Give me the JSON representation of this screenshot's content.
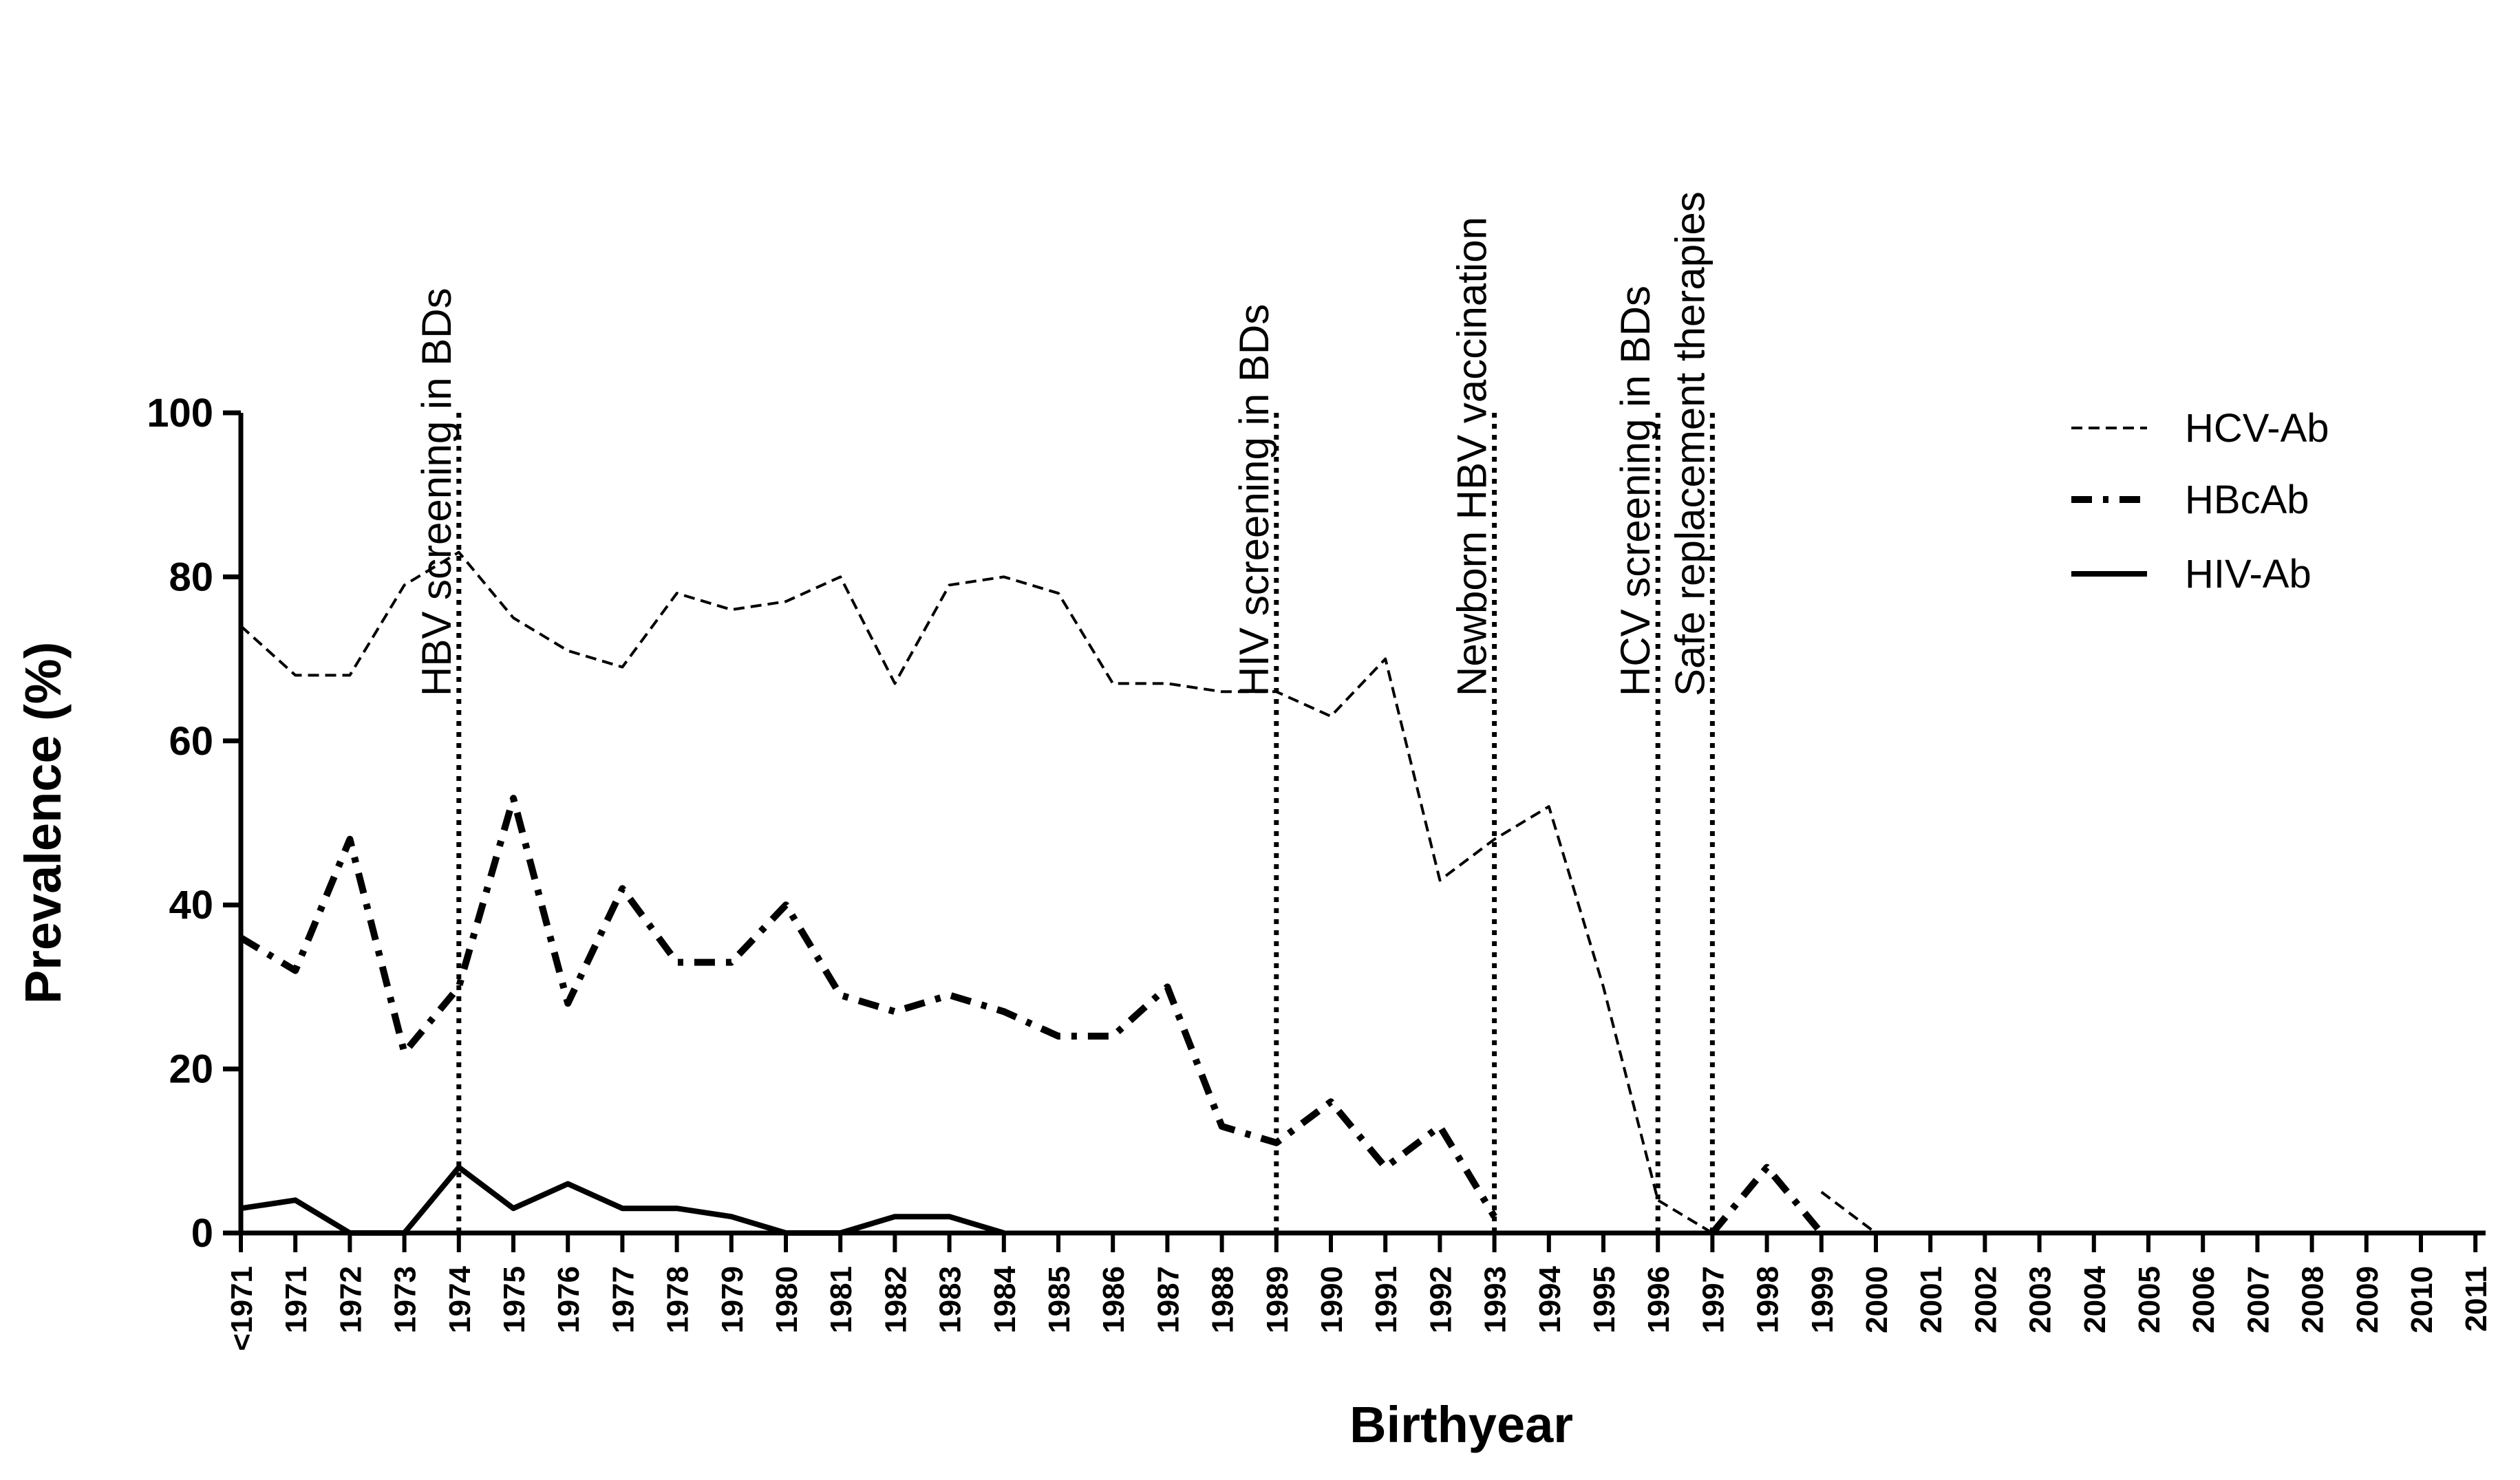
{
  "chart_data": {
    "type": "line",
    "title": "",
    "xlabel": "Birthyear",
    "ylabel": "Prevalence (%)",
    "ylim": [
      0,
      100
    ],
    "yticks": [
      "0",
      "20",
      "40",
      "60",
      "80",
      "100"
    ],
    "grid": false,
    "legend_position": "top-right",
    "categories": [
      "<1971",
      "1971",
      "1972",
      "1973",
      "1974",
      "1975",
      "1976",
      "1977",
      "1978",
      "1979",
      "1980",
      "1981",
      "1982",
      "1983",
      "1984",
      "1985",
      "1986",
      "1987",
      "1988",
      "1989",
      "1990",
      "1991",
      "1992",
      "1993",
      "1994",
      "1995",
      "1996",
      "1997",
      "1998",
      "1999",
      "2000",
      "2001",
      "2002",
      "2003",
      "2004",
      "2005",
      "2006",
      "2007",
      "2008",
      "2009",
      "2010",
      "2011"
    ],
    "series": [
      {
        "name": "HCV-Ab",
        "style": "dashed",
        "values": [
          74,
          68,
          68,
          79,
          83,
          75,
          71,
          69,
          78,
          76,
          77,
          80,
          67,
          79,
          80,
          78,
          67,
          67,
          66,
          66,
          63,
          70,
          43,
          48,
          52,
          30,
          4,
          0,
          null,
          5,
          0,
          null,
          null,
          null,
          null,
          null,
          null,
          null,
          null,
          null,
          null,
          null
        ]
      },
      {
        "name": "HBcAb",
        "style": "dash-dot",
        "values": [
          36,
          32,
          48,
          22,
          30,
          53,
          28,
          42,
          33,
          33,
          40,
          29,
          27,
          29,
          27,
          24,
          24,
          30,
          13,
          11,
          16,
          8,
          13,
          2,
          null,
          null,
          null,
          0,
          8,
          0,
          null,
          null,
          null,
          null,
          null,
          null,
          null,
          null,
          null,
          null,
          null,
          null
        ]
      },
      {
        "name": "HIV-Ab",
        "style": "solid",
        "values": [
          3,
          4,
          0,
          0,
          8,
          3,
          6,
          3,
          3,
          2,
          0,
          0,
          2,
          2,
          0,
          null,
          null,
          null,
          null,
          null,
          null,
          null,
          null,
          null,
          null,
          null,
          null,
          null,
          null,
          null,
          null,
          null,
          null,
          null,
          null,
          null,
          null,
          null,
          null,
          null,
          null,
          null
        ]
      }
    ],
    "events": [
      {
        "year": "1974",
        "label": "HBV screening in BDs"
      },
      {
        "year": "1989",
        "label": "HIV screening in BDs"
      },
      {
        "year": "1993",
        "label": "Newborn HBV vaccination"
      },
      {
        "year": "1996",
        "label": "HCV screening in BDs"
      },
      {
        "year": "1997",
        "label": "Safe replacement therapies"
      }
    ]
  }
}
